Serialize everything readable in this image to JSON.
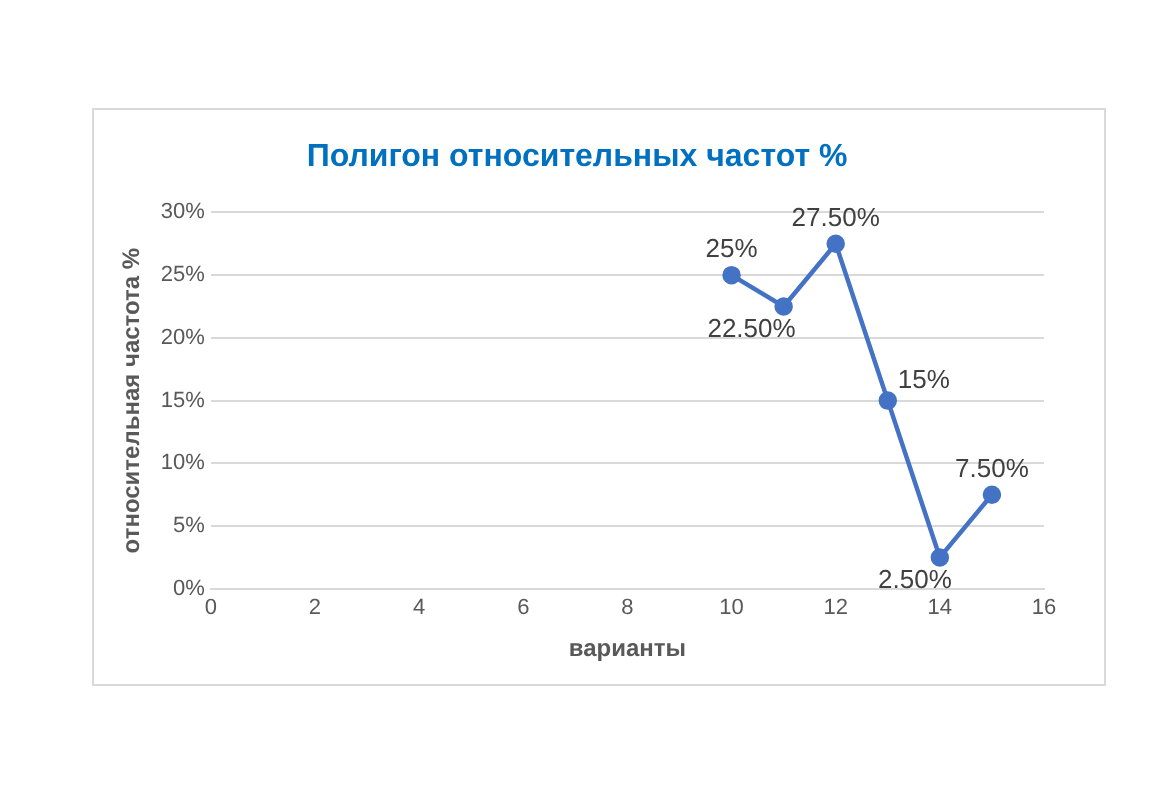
{
  "chart_data": {
    "type": "line",
    "title": "Полигон относительных частот %",
    "xlabel": "варианты",
    "ylabel": "относительная частота %",
    "x": [
      10,
      11,
      12,
      13,
      14,
      15
    ],
    "series": [
      {
        "color": "#4472c4",
        "values": [
          25,
          22.5,
          27.5,
          15,
          2.5,
          7.5
        ],
        "value_labels": [
          "25%",
          "22.50%",
          "27.50%",
          "15%",
          "2.50%",
          "7.50%"
        ]
      }
    ],
    "xlim": [
      0,
      16
    ],
    "xticks": [
      0,
      2,
      4,
      6,
      8,
      10,
      12,
      14,
      16
    ],
    "ylim": [
      0,
      30
    ],
    "yticks": [
      {
        "value": 0,
        "label": "0%"
      },
      {
        "value": 5,
        "label": "5%"
      },
      {
        "value": 10,
        "label": "10%"
      },
      {
        "value": 15,
        "label": "15%"
      },
      {
        "value": 20,
        "label": "20%"
      },
      {
        "value": 25,
        "label": "25%"
      },
      {
        "value": 30,
        "label": "30%"
      }
    ],
    "grid": "y",
    "legend": false,
    "marker": "circle",
    "line_style": "solid"
  }
}
